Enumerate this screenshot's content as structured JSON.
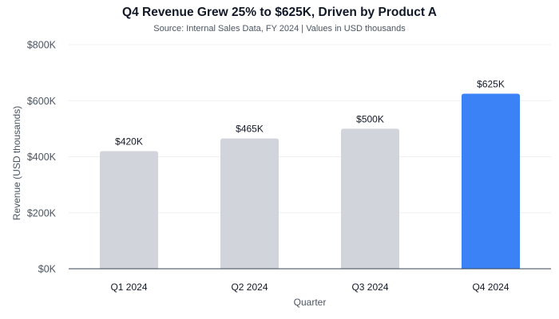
{
  "chart_data": {
    "type": "bar",
    "title": "Q4 Revenue Grew 25% to $625K, Driven by Product A",
    "subtitle": "Source: Internal Sales Data, FY 2024 | Values in USD thousands",
    "xlabel": "Quarter",
    "ylabel": "Revenue (USD thousands)",
    "categories": [
      "Q1 2024",
      "Q2 2024",
      "Q3 2024",
      "Q4 2024"
    ],
    "values": [
      420,
      465,
      500,
      625
    ],
    "data_labels": [
      "$420K",
      "$465K",
      "$500K",
      "$625K"
    ],
    "ylim": [
      0,
      800
    ],
    "yticks": [
      0,
      200,
      400,
      600,
      800
    ],
    "ytick_labels": [
      "$0K",
      "$200K",
      "$400K",
      "$600K",
      "$800K"
    ],
    "grid": true,
    "colors": {
      "default_bar": "#d1d5db",
      "highlight_bar": "#3b82f6",
      "highlight_index": 3
    }
  }
}
